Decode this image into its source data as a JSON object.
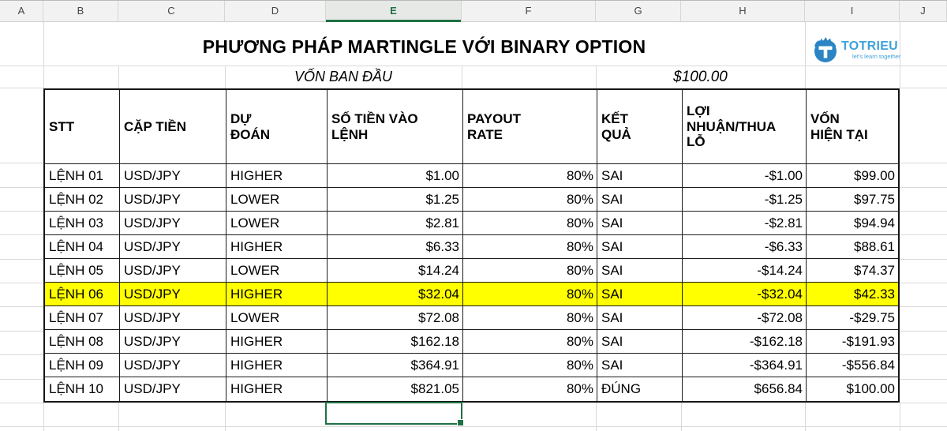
{
  "sheet": {
    "column_header": {
      "letters": [
        "A",
        "B",
        "C",
        "D",
        "E",
        "F",
        "G",
        "H",
        "I",
        "J"
      ],
      "selected": "E"
    },
    "title_row": {
      "title": "PHƯƠNG PHÁP MARTINGLE VỚI BINARY OPTION"
    },
    "capital_row": {
      "label": "VỐN BAN ĐẦU",
      "value": "$100.00"
    },
    "logo": {
      "name": "TOTRIEU",
      "tagline": "let's learn together",
      "icon": "totrieu-circle-t-flame-icon"
    },
    "table": {
      "headers": [
        "STT",
        "CẶP TIỀN",
        "DỰ\nĐOÁN",
        "SỐ TIỀN VÀO\nLỆNH",
        "PAYOUT\nRATE",
        "KẾT\nQUẢ",
        "LỢI\nNHUẬN/THUA\nLỖ",
        "VỐN\nHIỆN TẠI"
      ],
      "rows": [
        [
          "LỆNH 01",
          "USD/JPY",
          "HIGHER",
          "$1.00",
          "80%",
          "SAI",
          "-$1.00",
          "$99.00"
        ],
        [
          "LỆNH 02",
          "USD/JPY",
          "LOWER",
          "$1.25",
          "80%",
          "SAI",
          "-$1.25",
          "$97.75"
        ],
        [
          "LỆNH 03",
          "USD/JPY",
          "LOWER",
          "$2.81",
          "80%",
          "SAI",
          "-$2.81",
          "$94.94"
        ],
        [
          "LỆNH 04",
          "USD/JPY",
          "HIGHER",
          "$6.33",
          "80%",
          "SAI",
          "-$6.33",
          "$88.61"
        ],
        [
          "LỆNH 05",
          "USD/JPY",
          "LOWER",
          "$14.24",
          "80%",
          "SAI",
          "-$14.24",
          "$74.37"
        ],
        [
          "LỆNH 06",
          "USD/JPY",
          "HIGHER",
          "$32.04",
          "80%",
          "SAI",
          "-$32.04",
          "$42.33"
        ],
        [
          "LỆNH 07",
          "USD/JPY",
          "LOWER",
          "$72.08",
          "80%",
          "SAI",
          "-$72.08",
          "-$29.75"
        ],
        [
          "LỆNH 08",
          "USD/JPY",
          "HIGHER",
          "$162.18",
          "80%",
          "SAI",
          "-$162.18",
          "-$191.93"
        ],
        [
          "LỆNH 09",
          "USD/JPY",
          "HIGHER",
          "$364.91",
          "80%",
          "SAI",
          "-$364.91",
          "-$556.84"
        ],
        [
          "LỆNH 10",
          "USD/JPY",
          "HIGHER",
          "$821.05",
          "80%",
          "ĐÚNG",
          "$656.84",
          "$100.00"
        ]
      ],
      "highlighted_row_index": 5
    },
    "colors": {
      "row_highlight": "#ffff00",
      "selection_green": "#1f7145",
      "logo_blue": "#3fa2db",
      "logo_icon_blue": "#2b85c4"
    }
  }
}
